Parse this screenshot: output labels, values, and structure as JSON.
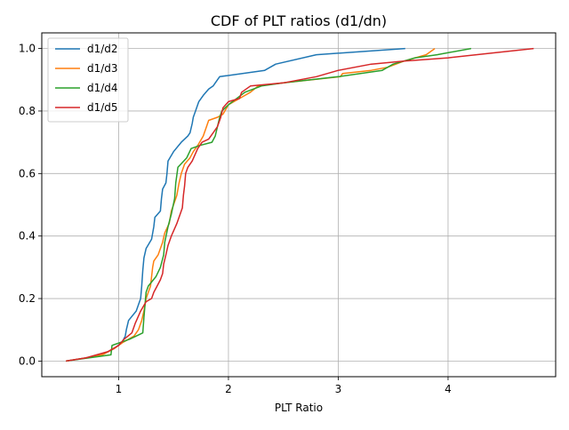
{
  "chart_data": {
    "type": "line",
    "title": "CDF of PLT ratios (d1/dn)",
    "xlabel": "PLT Ratio",
    "ylabel": "",
    "xlim": [
      0.3,
      4.98
    ],
    "ylim": [
      -0.05,
      1.05
    ],
    "xticks": [
      1,
      2,
      3,
      4
    ],
    "xtick_labels": [
      "1",
      "2",
      "3",
      "4"
    ],
    "yticks": [
      0.0,
      0.2,
      0.4,
      0.6,
      0.8,
      1.0
    ],
    "ytick_labels": [
      "0.0",
      "0.2",
      "0.4",
      "0.6",
      "0.8",
      "1.0"
    ],
    "grid": true,
    "legend_position": "upper left",
    "series": [
      {
        "name": "d1/d2",
        "color": "#1f77b4",
        "points": [
          [
            0.52,
            0.0
          ],
          [
            0.7,
            0.01
          ],
          [
            0.85,
            0.02
          ],
          [
            0.96,
            0.04
          ],
          [
            1.03,
            0.06
          ],
          [
            1.06,
            0.08
          ],
          [
            1.07,
            0.1
          ],
          [
            1.09,
            0.13
          ],
          [
            1.16,
            0.16
          ],
          [
            1.2,
            0.2
          ],
          [
            1.21,
            0.24
          ],
          [
            1.22,
            0.29
          ],
          [
            1.23,
            0.33
          ],
          [
            1.25,
            0.36
          ],
          [
            1.3,
            0.39
          ],
          [
            1.32,
            0.43
          ],
          [
            1.33,
            0.46
          ],
          [
            1.38,
            0.48
          ],
          [
            1.39,
            0.52
          ],
          [
            1.4,
            0.55
          ],
          [
            1.43,
            0.57
          ],
          [
            1.44,
            0.6
          ],
          [
            1.45,
            0.64
          ],
          [
            1.5,
            0.67
          ],
          [
            1.57,
            0.7
          ],
          [
            1.63,
            0.72
          ],
          [
            1.65,
            0.73
          ],
          [
            1.67,
            0.76
          ],
          [
            1.68,
            0.78
          ],
          [
            1.7,
            0.8
          ],
          [
            1.73,
            0.83
          ],
          [
            1.77,
            0.85
          ],
          [
            1.82,
            0.87
          ],
          [
            1.86,
            0.88
          ],
          [
            1.9,
            0.9
          ],
          [
            1.92,
            0.91
          ],
          [
            2.33,
            0.93
          ],
          [
            2.43,
            0.95
          ],
          [
            2.8,
            0.98
          ],
          [
            3.61,
            1.0
          ]
        ]
      },
      {
        "name": "d1/d3",
        "color": "#ff7f0e",
        "points": [
          [
            0.52,
            0.0
          ],
          [
            0.7,
            0.01
          ],
          [
            0.85,
            0.02
          ],
          [
            0.96,
            0.04
          ],
          [
            1.04,
            0.06
          ],
          [
            1.14,
            0.08
          ],
          [
            1.18,
            0.1
          ],
          [
            1.21,
            0.13
          ],
          [
            1.23,
            0.16
          ],
          [
            1.25,
            0.2
          ],
          [
            1.29,
            0.24
          ],
          [
            1.3,
            0.27
          ],
          [
            1.31,
            0.3
          ],
          [
            1.32,
            0.32
          ],
          [
            1.36,
            0.34
          ],
          [
            1.38,
            0.36
          ],
          [
            1.4,
            0.38
          ],
          [
            1.42,
            0.41
          ],
          [
            1.46,
            0.44
          ],
          [
            1.48,
            0.48
          ],
          [
            1.5,
            0.5
          ],
          [
            1.53,
            0.53
          ],
          [
            1.55,
            0.57
          ],
          [
            1.57,
            0.6
          ],
          [
            1.6,
            0.63
          ],
          [
            1.65,
            0.65
          ],
          [
            1.68,
            0.67
          ],
          [
            1.72,
            0.69
          ],
          [
            1.77,
            0.72
          ],
          [
            1.8,
            0.75
          ],
          [
            1.82,
            0.77
          ],
          [
            1.9,
            0.78
          ],
          [
            1.95,
            0.79
          ],
          [
            2.0,
            0.82
          ],
          [
            2.15,
            0.85
          ],
          [
            2.2,
            0.86
          ],
          [
            2.27,
            0.88
          ],
          [
            2.5,
            0.89
          ],
          [
            3.02,
            0.91
          ],
          [
            3.04,
            0.92
          ],
          [
            3.3,
            0.93
          ],
          [
            3.45,
            0.94
          ],
          [
            3.6,
            0.96
          ],
          [
            3.8,
            0.98
          ],
          [
            3.88,
            1.0
          ]
        ]
      },
      {
        "name": "d1/d4",
        "color": "#2ca02c",
        "points": [
          [
            0.52,
            0.0
          ],
          [
            0.93,
            0.02
          ],
          [
            0.94,
            0.05
          ],
          [
            1.1,
            0.07
          ],
          [
            1.22,
            0.09
          ],
          [
            1.23,
            0.14
          ],
          [
            1.24,
            0.18
          ],
          [
            1.25,
            0.22
          ],
          [
            1.27,
            0.24
          ],
          [
            1.34,
            0.27
          ],
          [
            1.38,
            0.3
          ],
          [
            1.41,
            0.34
          ],
          [
            1.42,
            0.38
          ],
          [
            1.45,
            0.43
          ],
          [
            1.48,
            0.47
          ],
          [
            1.51,
            0.52
          ],
          [
            1.52,
            0.57
          ],
          [
            1.54,
            0.62
          ],
          [
            1.62,
            0.65
          ],
          [
            1.66,
            0.68
          ],
          [
            1.74,
            0.69
          ],
          [
            1.85,
            0.7
          ],
          [
            1.88,
            0.72
          ],
          [
            1.9,
            0.75
          ],
          [
            1.92,
            0.78
          ],
          [
            1.94,
            0.8
          ],
          [
            2.0,
            0.82
          ],
          [
            2.15,
            0.86
          ],
          [
            2.3,
            0.88
          ],
          [
            2.5,
            0.89
          ],
          [
            3.0,
            0.91
          ],
          [
            3.4,
            0.93
          ],
          [
            3.5,
            0.95
          ],
          [
            3.7,
            0.97
          ],
          [
            3.9,
            0.98
          ],
          [
            4.21,
            1.0
          ]
        ]
      },
      {
        "name": "d1/d5",
        "color": "#d62728",
        "points": [
          [
            0.52,
            0.0
          ],
          [
            0.7,
            0.01
          ],
          [
            0.9,
            0.03
          ],
          [
            1.0,
            0.05
          ],
          [
            1.05,
            0.07
          ],
          [
            1.12,
            0.09
          ],
          [
            1.15,
            0.12
          ],
          [
            1.2,
            0.16
          ],
          [
            1.25,
            0.19
          ],
          [
            1.3,
            0.2
          ],
          [
            1.32,
            0.22
          ],
          [
            1.35,
            0.24
          ],
          [
            1.38,
            0.26
          ],
          [
            1.4,
            0.28
          ],
          [
            1.41,
            0.31
          ],
          [
            1.43,
            0.34
          ],
          [
            1.45,
            0.37
          ],
          [
            1.48,
            0.4
          ],
          [
            1.53,
            0.44
          ],
          [
            1.56,
            0.47
          ],
          [
            1.58,
            0.49
          ],
          [
            1.59,
            0.53
          ],
          [
            1.6,
            0.56
          ],
          [
            1.61,
            0.6
          ],
          [
            1.63,
            0.62
          ],
          [
            1.67,
            0.64
          ],
          [
            1.72,
            0.68
          ],
          [
            1.76,
            0.7
          ],
          [
            1.82,
            0.71
          ],
          [
            1.86,
            0.73
          ],
          [
            1.9,
            0.75
          ],
          [
            1.93,
            0.78
          ],
          [
            1.95,
            0.81
          ],
          [
            2.0,
            0.83
          ],
          [
            2.1,
            0.84
          ],
          [
            2.12,
            0.86
          ],
          [
            2.2,
            0.88
          ],
          [
            2.5,
            0.89
          ],
          [
            2.8,
            0.91
          ],
          [
            3.0,
            0.93
          ],
          [
            3.3,
            0.95
          ],
          [
            3.6,
            0.96
          ],
          [
            4.0,
            0.97
          ],
          [
            4.78,
            1.0
          ]
        ]
      }
    ]
  }
}
